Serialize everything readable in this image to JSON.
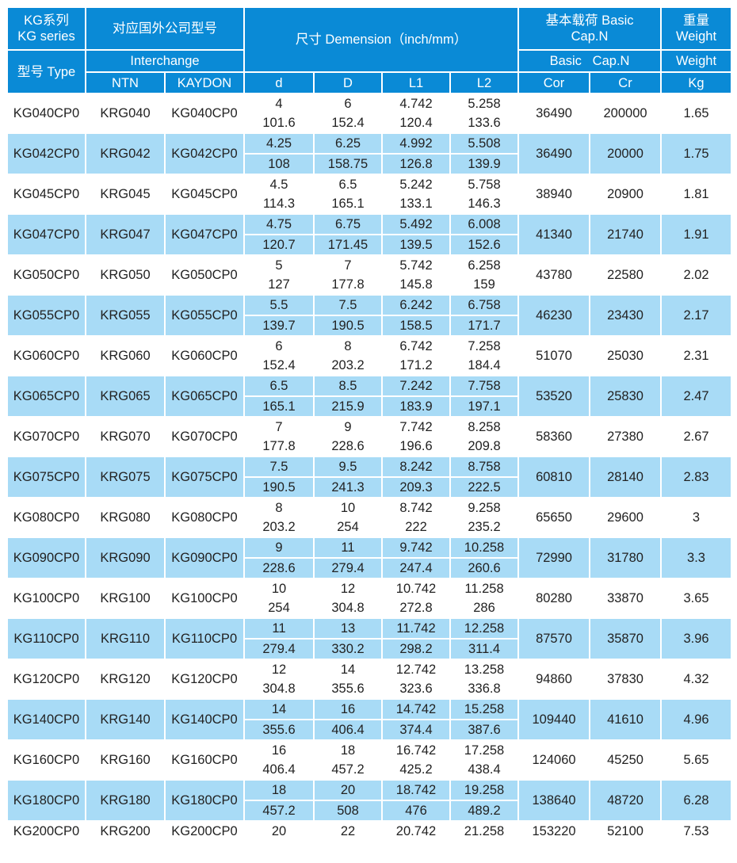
{
  "header": {
    "series_cn": "KG系列",
    "series_en": "KG series",
    "type": "型号 Type",
    "foreign_cn": "对应国外公司型号",
    "interchange": "Interchange",
    "ntn": "NTN",
    "kaydon": "KAYDON",
    "dimension": "尺寸 Demension（inch/mm）",
    "d": "d",
    "D": "D",
    "L1": "L1",
    "L2": "L2",
    "load_cn": "基本载荷 Basic",
    "load_capn": "Cap.N",
    "load_en": "Basic   Cap.N",
    "cor": "Cor",
    "cr": "Cr",
    "weight_cn": "重量",
    "weight_en": "Weight",
    "weight_en2": "Weight",
    "kg": "Kg"
  },
  "colors": {
    "header_bg": "#0a8ad6",
    "alt_row_bg": "#a8dbf6"
  },
  "rows": [
    {
      "type": "KG040CP0",
      "ntn": "KRG040",
      "kaydon": "KG040CP0",
      "inch": [
        "4",
        "6",
        "4.742",
        "5.258"
      ],
      "mm": [
        "101.6",
        "152.4",
        "120.4",
        "133.6"
      ],
      "cor": "36490",
      "cr": "200000",
      "kg": "1.65"
    },
    {
      "type": "KG042CP0",
      "ntn": "KRG042",
      "kaydon": "KG042CP0",
      "inch": [
        "4.25",
        "6.25",
        "4.992",
        "5.508"
      ],
      "mm": [
        "108",
        "158.75",
        "126.8",
        "139.9"
      ],
      "cor": "36490",
      "cr": "20000",
      "kg": "1.75"
    },
    {
      "type": "KG045CP0",
      "ntn": "KRG045",
      "kaydon": "KG045CP0",
      "inch": [
        "4.5",
        "6.5",
        "5.242",
        "5.758"
      ],
      "mm": [
        "114.3",
        "165.1",
        "133.1",
        "146.3"
      ],
      "cor": "38940",
      "cr": "20900",
      "kg": "1.81"
    },
    {
      "type": "KG047CP0",
      "ntn": "KRG047",
      "kaydon": "KG047CP0",
      "inch": [
        "4.75",
        "6.75",
        "5.492",
        "6.008"
      ],
      "mm": [
        "120.7",
        "171.45",
        "139.5",
        "152.6"
      ],
      "cor": "41340",
      "cr": "21740",
      "kg": "1.91"
    },
    {
      "type": "KG050CP0",
      "ntn": "KRG050",
      "kaydon": "KG050CP0",
      "inch": [
        "5",
        "7",
        "5.742",
        "6.258"
      ],
      "mm": [
        "127",
        "177.8",
        "145.8",
        "159"
      ],
      "cor": "43780",
      "cr": "22580",
      "kg": "2.02"
    },
    {
      "type": "KG055CP0",
      "ntn": "KRG055",
      "kaydon": "KG055CP0",
      "inch": [
        "5.5",
        "7.5",
        "6.242",
        "6.758"
      ],
      "mm": [
        "139.7",
        "190.5",
        "158.5",
        "171.7"
      ],
      "cor": "46230",
      "cr": "23430",
      "kg": "2.17"
    },
    {
      "type": "KG060CP0",
      "ntn": "KRG060",
      "kaydon": "KG060CP0",
      "inch": [
        "6",
        "8",
        "6.742",
        "7.258"
      ],
      "mm": [
        "152.4",
        "203.2",
        "171.2",
        "184.4"
      ],
      "cor": "51070",
      "cr": "25030",
      "kg": "2.31"
    },
    {
      "type": "KG065CP0",
      "ntn": "KRG065",
      "kaydon": "KG065CP0",
      "inch": [
        "6.5",
        "8.5",
        "7.242",
        "7.758"
      ],
      "mm": [
        "165.1",
        "215.9",
        "183.9",
        "197.1"
      ],
      "cor": "53520",
      "cr": "25830",
      "kg": "2.47"
    },
    {
      "type": "KG070CP0",
      "ntn": "KRG070",
      "kaydon": "KG070CP0",
      "inch": [
        "7",
        "9",
        "7.742",
        "8.258"
      ],
      "mm": [
        "177.8",
        "228.6",
        "196.6",
        "209.8"
      ],
      "cor": "58360",
      "cr": "27380",
      "kg": "2.67"
    },
    {
      "type": "KG075CP0",
      "ntn": "KRG075",
      "kaydon": "KG075CP0",
      "inch": [
        "7.5",
        "9.5",
        "8.242",
        "8.758"
      ],
      "mm": [
        "190.5",
        "241.3",
        "209.3",
        "222.5"
      ],
      "cor": "60810",
      "cr": "28140",
      "kg": "2.83"
    },
    {
      "type": "KG080CP0",
      "ntn": "KRG080",
      "kaydon": "KG080CP0",
      "inch": [
        "8",
        "10",
        "8.742",
        "9.258"
      ],
      "mm": [
        "203.2",
        "254",
        "222",
        "235.2"
      ],
      "cor": "65650",
      "cr": "29600",
      "kg": "3"
    },
    {
      "type": "KG090CP0",
      "ntn": "KRG090",
      "kaydon": "KG090CP0",
      "inch": [
        "9",
        "11",
        "9.742",
        "10.258"
      ],
      "mm": [
        "228.6",
        "279.4",
        "247.4",
        "260.6"
      ],
      "cor": "72990",
      "cr": "31780",
      "kg": "3.3"
    },
    {
      "type": "KG100CP0",
      "ntn": "KRG100",
      "kaydon": "KG100CP0",
      "inch": [
        "10",
        "12",
        "10.742",
        "11.258"
      ],
      "mm": [
        "254",
        "304.8",
        "272.8",
        "286"
      ],
      "cor": "80280",
      "cr": "33870",
      "kg": "3.65"
    },
    {
      "type": "KG110CP0",
      "ntn": "KRG110",
      "kaydon": "KG110CP0",
      "inch": [
        "11",
        "13",
        "11.742",
        "12.258"
      ],
      "mm": [
        "279.4",
        "330.2",
        "298.2",
        "311.4"
      ],
      "cor": "87570",
      "cr": "35870",
      "kg": "3.96"
    },
    {
      "type": "KG120CP0",
      "ntn": "KRG120",
      "kaydon": "KG120CP0",
      "inch": [
        "12",
        "14",
        "12.742",
        "13.258"
      ],
      "mm": [
        "304.8",
        "355.6",
        "323.6",
        "336.8"
      ],
      "cor": "94860",
      "cr": "37830",
      "kg": "4.32"
    },
    {
      "type": "KG140CP0",
      "ntn": "KRG140",
      "kaydon": "KG140CP0",
      "inch": [
        "14",
        "16",
        "14.742",
        "15.258"
      ],
      "mm": [
        "355.6",
        "406.4",
        "374.4",
        "387.6"
      ],
      "cor": "109440",
      "cr": "41610",
      "kg": "4.96"
    },
    {
      "type": "KG160CP0",
      "ntn": "KRG160",
      "kaydon": "KG160CP0",
      "inch": [
        "16",
        "18",
        "16.742",
        "17.258"
      ],
      "mm": [
        "406.4",
        "457.2",
        "425.2",
        "438.4"
      ],
      "cor": "124060",
      "cr": "45250",
      "kg": "5.65"
    },
    {
      "type": "KG180CP0",
      "ntn": "KRG180",
      "kaydon": "KG180CP0",
      "inch": [
        "18",
        "20",
        "18.742",
        "19.258"
      ],
      "mm": [
        "457.2",
        "508",
        "476",
        "489.2"
      ],
      "cor": "138640",
      "cr": "48720",
      "kg": "6.28"
    },
    {
      "type": "KG200CP0",
      "ntn": "KRG200",
      "kaydon": "KG200CP0",
      "inch": [
        "20",
        "22",
        "20.742",
        "21.258"
      ],
      "cor": "153220",
      "cr": "52100",
      "kg": "7.53"
    }
  ]
}
